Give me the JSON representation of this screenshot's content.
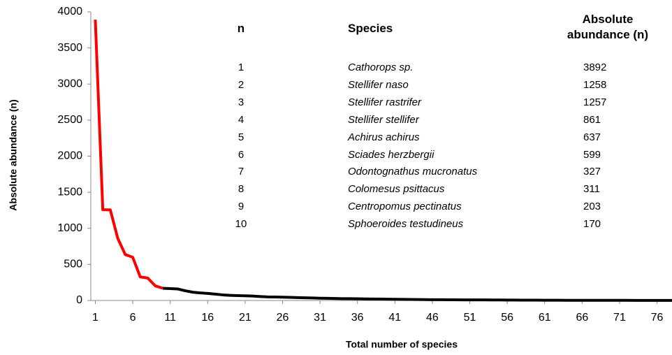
{
  "chart_data": {
    "type": "line",
    "xlabel": "Total number of species",
    "ylabel": "Absolute abundance (n)",
    "xlim": [
      0.4,
      78
    ],
    "ylim": [
      0,
      4000
    ],
    "xticks": [
      1,
      6,
      11,
      16,
      21,
      26,
      31,
      36,
      41,
      46,
      51,
      56,
      61,
      66,
      71,
      76
    ],
    "yticks": [
      0,
      500,
      1000,
      1500,
      2000,
      2500,
      3000,
      3500,
      4000
    ],
    "series": [
      {
        "color": "#ff0000",
        "x": [
          1,
          2,
          3,
          4,
          5,
          6,
          7,
          8,
          9,
          10
        ],
        "values": [
          3892,
          1258,
          1257,
          861,
          637,
          599,
          327,
          311,
          203,
          170
        ]
      },
      {
        "color": "#000000",
        "x": [
          10,
          11,
          12,
          13,
          14,
          15,
          16,
          17,
          18,
          19,
          20,
          21,
          22,
          23,
          24,
          25,
          26,
          27,
          28,
          29,
          30,
          31,
          32,
          33,
          34,
          35,
          36,
          37,
          38,
          39,
          40,
          41,
          42,
          43,
          44,
          45,
          46,
          47,
          48,
          49,
          50,
          51,
          52,
          53,
          54,
          55,
          56,
          57,
          58,
          59,
          60,
          61,
          62,
          63,
          64,
          65,
          66,
          67,
          68,
          69,
          70,
          71,
          72,
          73,
          74,
          75,
          76,
          77,
          78
        ],
        "values": [
          170,
          165,
          160,
          135,
          115,
          105,
          98,
          88,
          78,
          72,
          68,
          65,
          62,
          55,
          50,
          48,
          46,
          44,
          40,
          38,
          35,
          32,
          30,
          28,
          26,
          25,
          24,
          22,
          21,
          20,
          18,
          17,
          16,
          14,
          13,
          12,
          11,
          11,
          10,
          10,
          9,
          9,
          8,
          8,
          7,
          7,
          6,
          6,
          5,
          5,
          5,
          4,
          4,
          4,
          3,
          3,
          3,
          3,
          2,
          2,
          2,
          2,
          2,
          1,
          1,
          1,
          1,
          1,
          1
        ]
      }
    ],
    "table": {
      "headers": [
        "n",
        "Species",
        "Absolute abundance (n)"
      ],
      "species": [
        "Cathorops sp.",
        "Stellifer naso",
        "Stellifer rastrifer",
        "Stellifer stellifer",
        "Achirus achirus",
        "Sciades herzbergii",
        "Odontognathus mucronatus",
        "Colomesus psittacus",
        "Centropomus pectinatus",
        "Sphoeroides testudineus"
      ]
    }
  }
}
